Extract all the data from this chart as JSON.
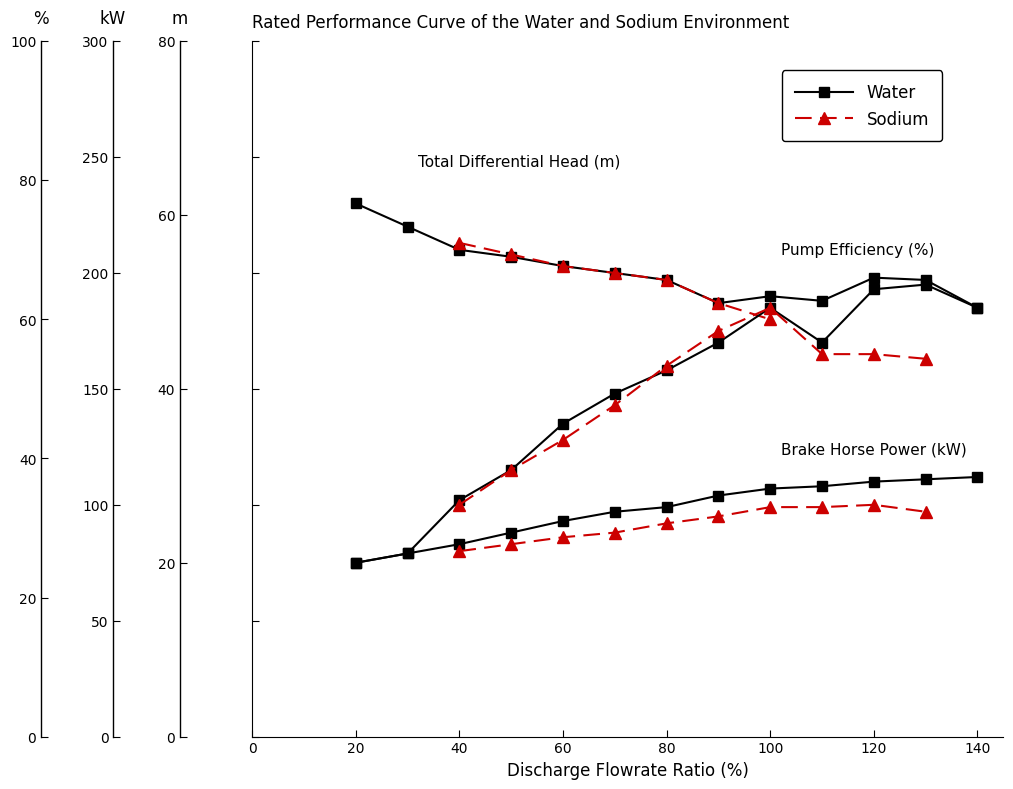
{
  "title": "Rated Performance Curve of the Water and Sodium Environment",
  "xlabel": "Discharge Flowrate Ratio (%)",
  "head_water_x": [
    20,
    30,
    40,
    50,
    60,
    70,
    80,
    90,
    100,
    110,
    120,
    130,
    140
  ],
  "head_water_y": [
    230,
    220,
    210,
    207,
    203,
    200,
    197,
    187,
    190,
    188,
    198,
    197,
    185
  ],
  "head_sodium_x": [
    40,
    50,
    60,
    70,
    80,
    90,
    100
  ],
  "head_sodium_y": [
    213,
    208,
    203,
    200,
    197,
    187,
    180
  ],
  "eff_water_x": [
    20,
    30,
    40,
    50,
    60,
    70,
    80,
    90,
    100,
    110,
    120,
    130,
    140
  ],
  "eff_water_y": [
    75,
    79,
    102,
    115,
    135,
    148,
    158,
    170,
    185,
    170,
    193,
    195,
    185
  ],
  "eff_sodium_x": [
    40,
    50,
    60,
    70,
    80,
    90,
    100,
    110,
    120,
    130
  ],
  "eff_sodium_y": [
    100,
    115,
    128,
    143,
    160,
    175,
    185,
    165,
    165,
    163
  ],
  "bhp_water_x": [
    20,
    30,
    40,
    50,
    60,
    70,
    80,
    90,
    100,
    110,
    120,
    130,
    140
  ],
  "bhp_water_y": [
    75,
    79,
    83,
    88,
    93,
    97,
    99,
    104,
    107,
    108,
    110,
    111,
    112
  ],
  "bhp_sodium_x": [
    40,
    50,
    60,
    70,
    80,
    90,
    100,
    110,
    120,
    130
  ],
  "bhp_sodium_y": [
    80,
    83,
    86,
    88,
    92,
    95,
    99,
    99,
    100,
    97
  ],
  "xlim": [
    0,
    145
  ],
  "ylim": [
    0,
    300
  ],
  "pct_ticks": [
    0,
    20,
    40,
    60,
    80,
    100
  ],
  "kw_ticks": [
    0,
    50,
    100,
    150,
    200,
    250,
    300
  ],
  "m_ticks": [
    0,
    20,
    40,
    60,
    80
  ],
  "xticks": [
    0,
    20,
    40,
    60,
    80,
    100,
    120,
    140
  ],
  "water_color": "#000000",
  "sodium_color": "#cc0000",
  "label_water": "Water",
  "label_sodium": "Sodium",
  "label_head": "Total Differential Head (m)",
  "label_eff": "Pump Efficiency (%)",
  "label_bhp": "Brake Horse Power (kW)",
  "ann_head_x": 32,
  "ann_head_y": 248,
  "ann_eff_x": 102,
  "ann_eff_y": 210,
  "ann_bhp_x": 102,
  "ann_bhp_y": 124
}
